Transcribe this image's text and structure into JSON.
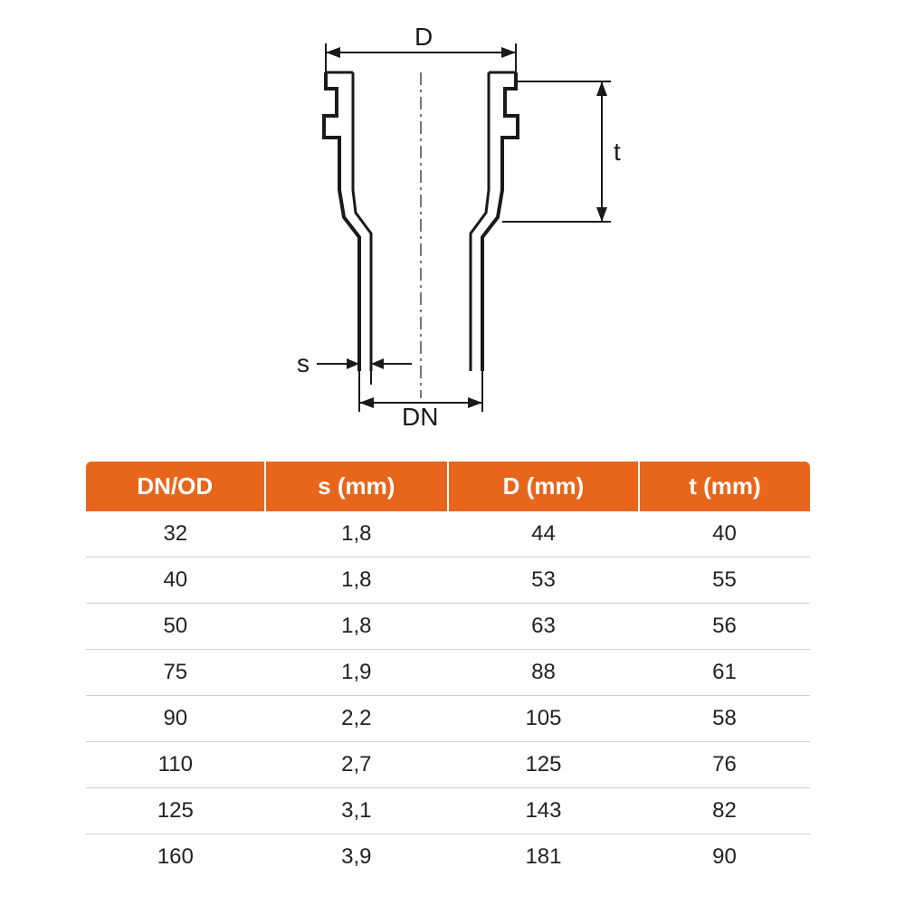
{
  "diagram": {
    "labels": {
      "D": "D",
      "t": "t",
      "s": "s",
      "DN": "DN"
    },
    "stroke_color": "#1a1a1a",
    "centerline_color": "#1a1a1a",
    "label_fontsize": 28
  },
  "table": {
    "header_bg": "#e8661b",
    "header_fg": "#ffffff",
    "row_border": "#d0d0d0",
    "cell_fontsize": 24,
    "header_fontsize": 26,
    "columns": [
      "DN/OD",
      "s (mm)",
      "D (mm)",
      "t (mm)"
    ],
    "rows": [
      [
        "32",
        "1,8",
        "44",
        "40"
      ],
      [
        "40",
        "1,8",
        "53",
        "55"
      ],
      [
        "50",
        "1,8",
        "63",
        "56"
      ],
      [
        "75",
        "1,9",
        "88",
        "61"
      ],
      [
        "90",
        "2,2",
        "105",
        "58"
      ],
      [
        "110",
        "2,7",
        "125",
        "76"
      ],
      [
        "125",
        "3,1",
        "143",
        "82"
      ],
      [
        "160",
        "3,9",
        "181",
        "90"
      ]
    ]
  }
}
